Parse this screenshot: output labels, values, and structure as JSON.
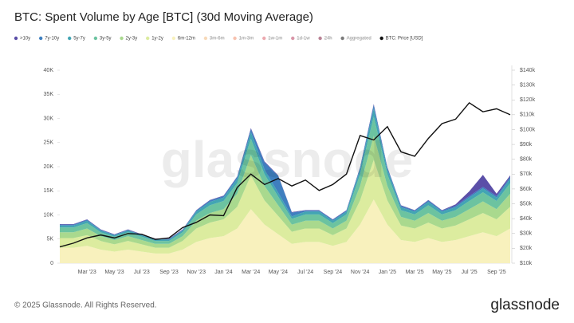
{
  "chart_data": {
    "type": "area",
    "stacked": true,
    "title": "BTC: Spent Volume by Age [BTC] (30d Moving Average)",
    "watermark": "glassnode",
    "footer": "© 2025 Glassnode. All Rights Reserved.",
    "logo": "glassnode",
    "categories": [
      null,
      null,
      "Mar '23",
      null,
      "May '23",
      null,
      "Jul '23",
      null,
      "Sep '23",
      null,
      "Nov '23",
      null,
      "Jan '24",
      null,
      "Mar '24",
      null,
      "May '24",
      null,
      "Jul '24",
      null,
      "Sep '24",
      null,
      "Nov '24",
      null,
      "Jan '25",
      null,
      "Mar '25",
      null,
      "May '25",
      null,
      "Jul '25",
      null,
      "Sep '25",
      null
    ],
    "ylim": [
      0,
      40000
    ],
    "yticks": [
      0,
      {
        "value": 5000,
        "label": "5K"
      },
      {
        "value": 10000,
        "label": "10K"
      },
      {
        "value": 15000,
        "label": "15K"
      },
      {
        "value": 20000,
        "label": "20K"
      },
      {
        "value": 25000,
        "label": "25K"
      },
      {
        "value": 30000,
        "label": "30K"
      },
      {
        "value": 35000,
        "label": "35K"
      },
      {
        "value": 40000,
        "label": "40K"
      }
    ],
    "y2lim": [
      10000,
      140000
    ],
    "y2ticks": [
      {
        "value": 10000,
        "label": "$10k"
      },
      {
        "value": 20000,
        "label": "$20k"
      },
      {
        "value": 30000,
        "label": "$30k"
      },
      {
        "value": 40000,
        "label": "$40k"
      },
      {
        "value": 50000,
        "label": "$50k"
      },
      {
        "value": 60000,
        "label": "$60k"
      },
      {
        "value": 70000,
        "label": "$70k"
      },
      {
        "value": 80000,
        "label": "$80k"
      },
      {
        "value": 90000,
        "label": "$90k"
      },
      {
        "value": 100000,
        "label": "$100k"
      },
      {
        "value": 110000,
        "label": "$110k"
      },
      {
        "value": 120000,
        "label": "$120k"
      },
      {
        "value": 130000,
        "label": "$130k"
      },
      {
        "value": 140000,
        "label": "$140k"
      }
    ],
    "series": [
      {
        "name": ">10y",
        "color": "#5b4fa8",
        "values": [
          100,
          100,
          100,
          100,
          100,
          100,
          100,
          100,
          100,
          100,
          100,
          100,
          100,
          100,
          200,
          200,
          100,
          100,
          100,
          100,
          100,
          100,
          100,
          200,
          100,
          100,
          100,
          100,
          100,
          300,
          1000,
          2500,
          500,
          300
        ]
      },
      {
        "name": "7y-10y",
        "color": "#3f7fbf",
        "values": [
          200,
          200,
          200,
          100,
          100,
          100,
          100,
          100,
          100,
          100,
          200,
          300,
          300,
          400,
          600,
          1500,
          3500,
          800,
          200,
          200,
          200,
          200,
          400,
          700,
          400,
          300,
          200,
          300,
          200,
          300,
          300,
          300,
          300,
          400
        ]
      },
      {
        "name": "5y-7y",
        "color": "#42a5b3",
        "values": [
          400,
          400,
          500,
          400,
          300,
          400,
          300,
          300,
          300,
          400,
          600,
          700,
          700,
          900,
          1400,
          1000,
          800,
          500,
          600,
          600,
          500,
          600,
          1000,
          1700,
          1000,
          600,
          600,
          700,
          600,
          600,
          700,
          800,
          700,
          900
        ]
      },
      {
        "name": "3y-5y",
        "color": "#6cc3a0",
        "values": [
          1000,
          1000,
          1100,
          800,
          700,
          800,
          700,
          600,
          600,
          800,
          1300,
          1600,
          1700,
          2200,
          3400,
          2400,
          1800,
          1200,
          1300,
          1300,
          1100,
          1300,
          2400,
          4000,
          2400,
          1400,
          1300,
          1600,
          1300,
          1400,
          1700,
          1900,
          1700,
          2200
        ]
      },
      {
        "name": "2y-3y",
        "color": "#a9d98e",
        "values": [
          1200,
          1200,
          1400,
          1000,
          900,
          1000,
          900,
          800,
          800,
          1000,
          1600,
          2000,
          2100,
          2700,
          4200,
          3000,
          2200,
          1500,
          1600,
          1600,
          1400,
          1600,
          3000,
          5000,
          3000,
          1800,
          1600,
          2000,
          1600,
          1800,
          2100,
          2400,
          2100,
          2700
        ]
      },
      {
        "name": "1y-2y",
        "color": "#dcec9f",
        "values": [
          2000,
          2000,
          2200,
          1800,
          1500,
          1800,
          1500,
          1200,
          1200,
          1800,
          2800,
          3200,
          3500,
          4500,
          7000,
          5000,
          3800,
          2500,
          2800,
          2800,
          2200,
          2800,
          5000,
          8200,
          5000,
          3000,
          2800,
          3200,
          2800,
          3000,
          3500,
          4000,
          3500,
          4500
        ]
      },
      {
        "name": "6m-12m",
        "color": "#f8f1bd",
        "values": [
          3200,
          3200,
          3600,
          2800,
          2400,
          2800,
          2400,
          2000,
          2000,
          2800,
          4400,
          5200,
          5600,
          7200,
          11200,
          8000,
          6000,
          4000,
          4400,
          4400,
          3600,
          4400,
          8000,
          13200,
          8000,
          4800,
          4400,
          5200,
          4400,
          4800,
          5600,
          6400,
          5600,
          7200
        ]
      },
      {
        "name": "3m-6m",
        "color": "#f2c08a",
        "visible": false
      },
      {
        "name": "1m-3m",
        "color": "#f29a7a",
        "visible": false
      },
      {
        "name": "1w-1m",
        "color": "#e0707a",
        "visible": false
      },
      {
        "name": "1d-1w",
        "color": "#c0506e",
        "visible": false
      },
      {
        "name": "24h",
        "color": "#8a2f4f",
        "visible": false
      },
      {
        "name": "Aggregated",
        "color": "#222222",
        "visible": false
      },
      {
        "name": "BTC: Price [USD]",
        "color": "#111111",
        "axis": "y2",
        "values": [
          21000,
          23500,
          27000,
          29000,
          27000,
          30000,
          29500,
          26000,
          27000,
          34000,
          37500,
          42500,
          42000,
          61000,
          70000,
          63000,
          67000,
          62000,
          66000,
          59000,
          63000,
          70000,
          96000,
          93000,
          102000,
          85000,
          82000,
          94000,
          104000,
          107000,
          118000,
          112000,
          114000,
          110000
        ]
      }
    ]
  }
}
